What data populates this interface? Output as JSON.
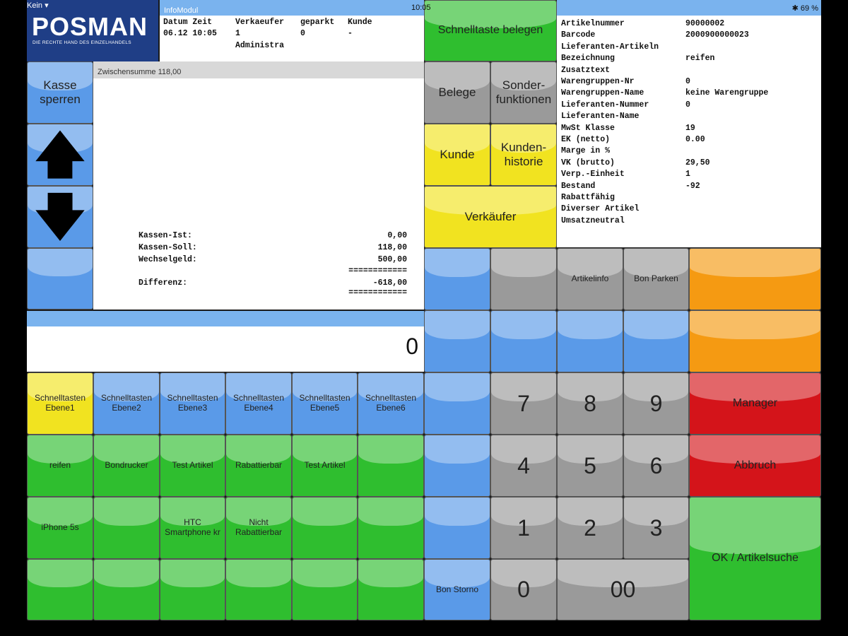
{
  "status": {
    "carrier": "Kein ▾",
    "time": "10:05",
    "battery": "69 %"
  },
  "logo": {
    "title": "POSMAN",
    "tagline": "DIE RECHTE HAND DES EINZELHANDELS"
  },
  "info_modul": {
    "title": "InfoModul",
    "headers": [
      "Datum Zeit",
      "Verkaeufer",
      "geparkt",
      "Kunde"
    ],
    "values": [
      "06.12 10:05",
      "1",
      "0",
      "-"
    ],
    "extra": "Administra"
  },
  "quick_assign": "Schnelltaste belegen",
  "left_buttons": {
    "lock": "Kasse sperren",
    "up_icon": "arrow-up",
    "down_icon": "arrow-down",
    "empty": ""
  },
  "receipt": {
    "subtotal": "Zwischensumme 118,00",
    "rows": [
      {
        "label": "Kassen-Ist:",
        "value": "0,00"
      },
      {
        "label": "Kassen-Soll:",
        "value": "118,00"
      },
      {
        "label": "Wechselgeld:",
        "value": "500,00"
      }
    ],
    "rule1": "============",
    "diff_label": "Differenz:",
    "diff_value": "-618,00",
    "rule2": "============"
  },
  "input_display": "0",
  "func_buttons": {
    "belege": "Belege",
    "sonder": "Sonder-funktionen",
    "kunde": "Kunde",
    "kundenhistorie": "Kunden-historie",
    "verkaeufer": "Verkäufer"
  },
  "article_info": [
    {
      "label": "Artikelnummer",
      "value": "90000002"
    },
    {
      "label": "Barcode",
      "value": "2000900000023"
    },
    {
      "label": "Lieferanten-Artikeln",
      "value": ""
    },
    {
      "label": "Bezeichnung",
      "value": "reifen"
    },
    {
      "label": "Zusatztext",
      "value": ""
    },
    {
      "label": "Warengruppen-Nr",
      "value": "0"
    },
    {
      "label": "Warengruppen-Name",
      "value": "keine Warengruppe"
    },
    {
      "label": "Lieferanten-Nummer",
      "value": "0"
    },
    {
      "label": "Lieferanten-Name",
      "value": ""
    },
    {
      "label": "MwSt Klasse",
      "value": "19"
    },
    {
      "label": "EK (netto)",
      "value": "0.00"
    },
    {
      "label": "Marge in %",
      "value": ""
    },
    {
      "label": "VK (brutto)",
      "value": "29,50"
    },
    {
      "label": "Verp.-Einheit",
      "value": "1"
    },
    {
      "label": "Bestand",
      "value": "-92"
    },
    {
      "label": "Rabattfähig",
      "value": ""
    },
    {
      "label": "Diverser Artikel",
      "value": ""
    },
    {
      "label": "Umsatzneutral",
      "value": ""
    }
  ],
  "layer_tabs": [
    "Schnelltasten Ebene1",
    "Schnelltasten Ebene2",
    "Schnelltasten Ebene3",
    "Schnelltasten Ebene4",
    "Schnelltasten Ebene5",
    "Schnelltasten Ebene6"
  ],
  "quick_keys": {
    "row1": [
      "reifen",
      "Bondrucker",
      "Test Artikel",
      "Rabattierbar",
      "Test Artikel",
      ""
    ],
    "row2": [
      "iPhone 5s",
      "",
      "HTC Smartphone kr",
      "Nicht Rabattierbar",
      "",
      ""
    ],
    "row3": [
      "",
      "",
      "",
      "",
      "",
      ""
    ]
  },
  "mid_keys": {
    "artikelinfo": "Artikelinfo",
    "bon_parken": "Bon Parken",
    "bon_storno": "Bon Storno"
  },
  "numpad": {
    "k7": "7",
    "k8": "8",
    "k9": "9",
    "k4": "4",
    "k5": "5",
    "k6": "6",
    "k1": "1",
    "k2": "2",
    "k3": "3",
    "k0": "0",
    "k00": "00"
  },
  "right_keys": {
    "manager": "Manager",
    "abbruch": "Abbruch",
    "ok": "OK / Artikelsuche"
  },
  "colors": {
    "blue": "#5a9ae8",
    "green": "#2fbe2f",
    "yellow": "#f1e320",
    "gray": "#9a9a9a",
    "orange": "#f59a12",
    "red": "#d4141a",
    "logo": "#1f3e86"
  }
}
